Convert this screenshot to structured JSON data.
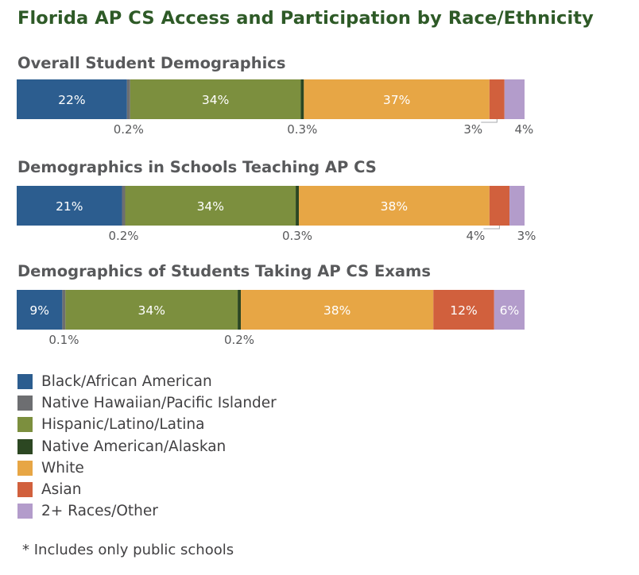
{
  "title": "Florida AP CS Access and Participation by Race/Ethnicity",
  "categories": [
    "Black/African American",
    "Native Hawaiian/Pacific Islander",
    "Hispanic/Latino/Latina",
    "Native American/Alaskan",
    "White",
    "Asian",
    "2+ Races/Other"
  ],
  "colors": [
    "#2c5d8f",
    "#6d6e71",
    "#7c8f3e",
    "#2c4722",
    "#e7a645",
    "#d1603d",
    "#b39ccb"
  ],
  "footnote": "* Includes only public schools",
  "chart_data": [
    {
      "type": "bar",
      "title": "Overall Student Demographics",
      "series": [
        {
          "name": "Black/African American",
          "value": 22,
          "label": "22%"
        },
        {
          "name": "Native Hawaiian/Pacific Islander",
          "value": 0.2,
          "label": "0.2%"
        },
        {
          "name": "Hispanic/Latino/Latina",
          "value": 34,
          "label": "34%"
        },
        {
          "name": "Native American/Alaskan",
          "value": 0.3,
          "label": "0.3%"
        },
        {
          "name": "White",
          "value": 37,
          "label": "37%"
        },
        {
          "name": "Asian",
          "value": 3,
          "label": "3%"
        },
        {
          "name": "2+ Races/Other",
          "value": 4,
          "label": "4%"
        }
      ]
    },
    {
      "type": "bar",
      "title": "Demographics in Schools Teaching AP CS",
      "series": [
        {
          "name": "Black/African American",
          "value": 21,
          "label": "21%"
        },
        {
          "name": "Native Hawaiian/Pacific Islander",
          "value": 0.2,
          "label": "0.2%"
        },
        {
          "name": "Hispanic/Latino/Latina",
          "value": 34,
          "label": "34%"
        },
        {
          "name": "Native American/Alaskan",
          "value": 0.3,
          "label": "0.3%"
        },
        {
          "name": "White",
          "value": 38,
          "label": "38%"
        },
        {
          "name": "Asian",
          "value": 4,
          "label": "4%"
        },
        {
          "name": "2+ Races/Other",
          "value": 3,
          "label": "3%"
        }
      ]
    },
    {
      "type": "bar",
      "title": "Demographics of Students Taking AP CS Exams",
      "series": [
        {
          "name": "Black/African American",
          "value": 9,
          "label": "9%"
        },
        {
          "name": "Native Hawaiian/Pacific Islander",
          "value": 0.1,
          "label": "0.1%"
        },
        {
          "name": "Hispanic/Latino/Latina",
          "value": 34,
          "label": "34%"
        },
        {
          "name": "Native American/Alaskan",
          "value": 0.2,
          "label": "0.2%"
        },
        {
          "name": "White",
          "value": 38,
          "label": "38%"
        },
        {
          "name": "Asian",
          "value": 12,
          "label": "12%"
        },
        {
          "name": "2+ Races/Other",
          "value": 6,
          "label": "6%"
        }
      ]
    }
  ]
}
